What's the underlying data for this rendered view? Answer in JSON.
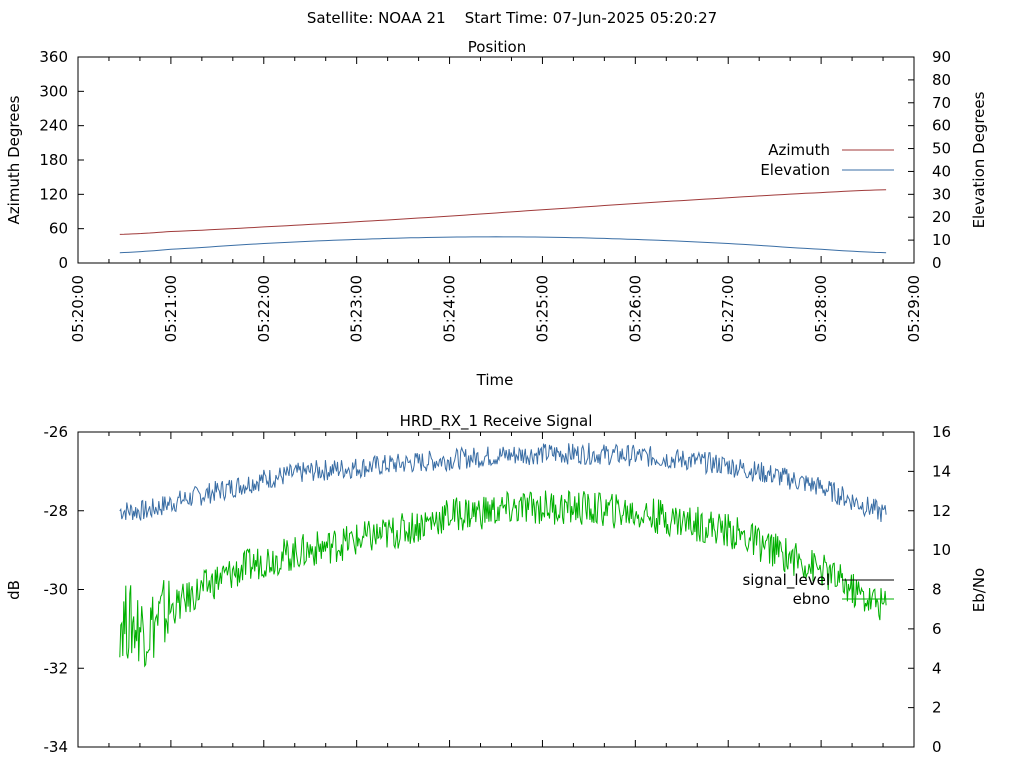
{
  "header": {
    "title": "Satellite: NOAA 21    Start Time: 07-Jun-2025 05:20:27"
  },
  "colors": {
    "azimuth": "#a03a3a",
    "elevation": "#3a6ea5",
    "signal_level": "#3a6ea5",
    "ebno": "#00b000",
    "legend_signal": "#000000",
    "axis": "#000000"
  },
  "chart_data": [
    {
      "type": "line",
      "title": "Position",
      "xlabel": "Time",
      "ylabel": "Azimuth Degrees",
      "y2label": "Elevation Degrees",
      "xlim": [
        "05:20:00",
        "05:29:00"
      ],
      "x_ticks": [
        "05:20:00",
        "05:21:00",
        "05:22:00",
        "05:23:00",
        "05:24:00",
        "05:25:00",
        "05:26:00",
        "05:27:00",
        "05:28:00",
        "05:29:00"
      ],
      "ylim": [
        0,
        360
      ],
      "y_ticks": [
        "0",
        "60",
        "120",
        "180",
        "240",
        "300",
        "360"
      ],
      "y2lim": [
        0,
        90
      ],
      "y2_ticks": [
        "0",
        "10",
        "20",
        "30",
        "40",
        "50",
        "60",
        "70",
        "80",
        "90"
      ],
      "legend_position": "right",
      "grid": false,
      "series": [
        {
          "name": "Azimuth",
          "axis": "y",
          "x": [
            "05:20:27",
            "05:21:00",
            "05:22:00",
            "05:23:00",
            "05:24:00",
            "05:25:00",
            "05:26:00",
            "05:27:00",
            "05:28:00",
            "05:28:42"
          ],
          "values": [
            50,
            55,
            63,
            72,
            82,
            93,
            104,
            114,
            123,
            128
          ]
        },
        {
          "name": "Elevation",
          "axis": "y2",
          "x": [
            "05:20:27",
            "05:21:00",
            "05:22:00",
            "05:23:00",
            "05:24:00",
            "05:25:00",
            "05:26:00",
            "05:27:00",
            "05:28:00",
            "05:28:42"
          ],
          "values": [
            4.5,
            6,
            8.5,
            10.3,
            11.3,
            11.3,
            10.3,
            8.5,
            6,
            4.5
          ]
        }
      ]
    },
    {
      "type": "line",
      "title": "HRD_RX_1 Receive Signal",
      "xlabel": "",
      "ylabel": "dB",
      "y2label": "Eb/No",
      "xlim": [
        "05:20:00",
        "05:29:00"
      ],
      "ylim": [
        -34,
        -26
      ],
      "y_ticks": [
        "-34",
        "-32",
        "-30",
        "-28",
        "-26"
      ],
      "y2lim": [
        0,
        16
      ],
      "y2_ticks": [
        "0",
        "2",
        "4",
        "6",
        "8",
        "10",
        "12",
        "14",
        "16"
      ],
      "legend_position": "right",
      "grid": false,
      "series": [
        {
          "name": "signal_level",
          "axis": "y",
          "x": [
            "05:20:27",
            "05:20:45",
            "05:21:00",
            "05:21:30",
            "05:22:00",
            "05:22:30",
            "05:23:00",
            "05:23:30",
            "05:24:00",
            "05:24:30",
            "05:25:00",
            "05:25:30",
            "05:26:00",
            "05:26:30",
            "05:27:00",
            "05:27:30",
            "05:28:00",
            "05:28:30",
            "05:28:42"
          ],
          "values": [
            -28.0,
            -28.0,
            -27.8,
            -27.5,
            -27.2,
            -27.0,
            -26.9,
            -26.8,
            -26.7,
            -26.6,
            -26.55,
            -26.55,
            -26.6,
            -26.7,
            -26.85,
            -27.1,
            -27.4,
            -27.9,
            -28.1
          ]
        },
        {
          "name": "ebno",
          "axis": "y2",
          "x": [
            "05:20:27",
            "05:20:45",
            "05:21:00",
            "05:21:30",
            "05:22:00",
            "05:22:30",
            "05:23:00",
            "05:23:30",
            "05:24:00",
            "05:24:30",
            "05:25:00",
            "05:25:30",
            "05:26:00",
            "05:26:30",
            "05:27:00",
            "05:27:30",
            "05:28:00",
            "05:28:30",
            "05:28:42"
          ],
          "values": [
            6.5,
            6.0,
            7.0,
            8.5,
            9.5,
            10.0,
            10.5,
            11.0,
            11.8,
            12.0,
            12.2,
            12.1,
            11.9,
            11.5,
            11.0,
            10.0,
            9.0,
            7.5,
            7.2
          ]
        }
      ]
    }
  ]
}
